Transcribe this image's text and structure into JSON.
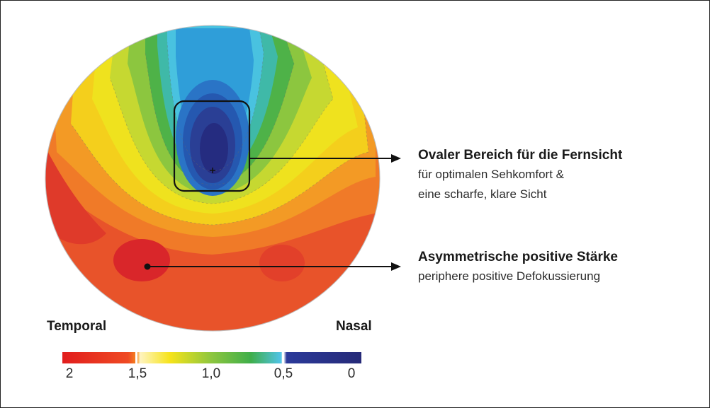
{
  "annotations": {
    "distance": {
      "title": "Ovaler Bereich für die Fernsicht",
      "line1": "für optimalen Sehkomfort &",
      "line2": "eine scharfe, klare Sicht"
    },
    "positive": {
      "title": "Asymmetrische positive Stärke",
      "line1": "periphere positive Defokussierung"
    }
  },
  "sides": {
    "left": "Temporal",
    "right": "Nasal"
  },
  "scale": {
    "ticks": [
      "2",
      "1,5",
      "1,0",
      "0,5",
      "0"
    ],
    "colors": {
      "red": "#e02020",
      "orange": "#f58a1f",
      "yellow": "#f6e31a",
      "green": "#3fae4a",
      "light_blue": "#4fc3e6",
      "dark_blue": "#2b2f86"
    }
  }
}
